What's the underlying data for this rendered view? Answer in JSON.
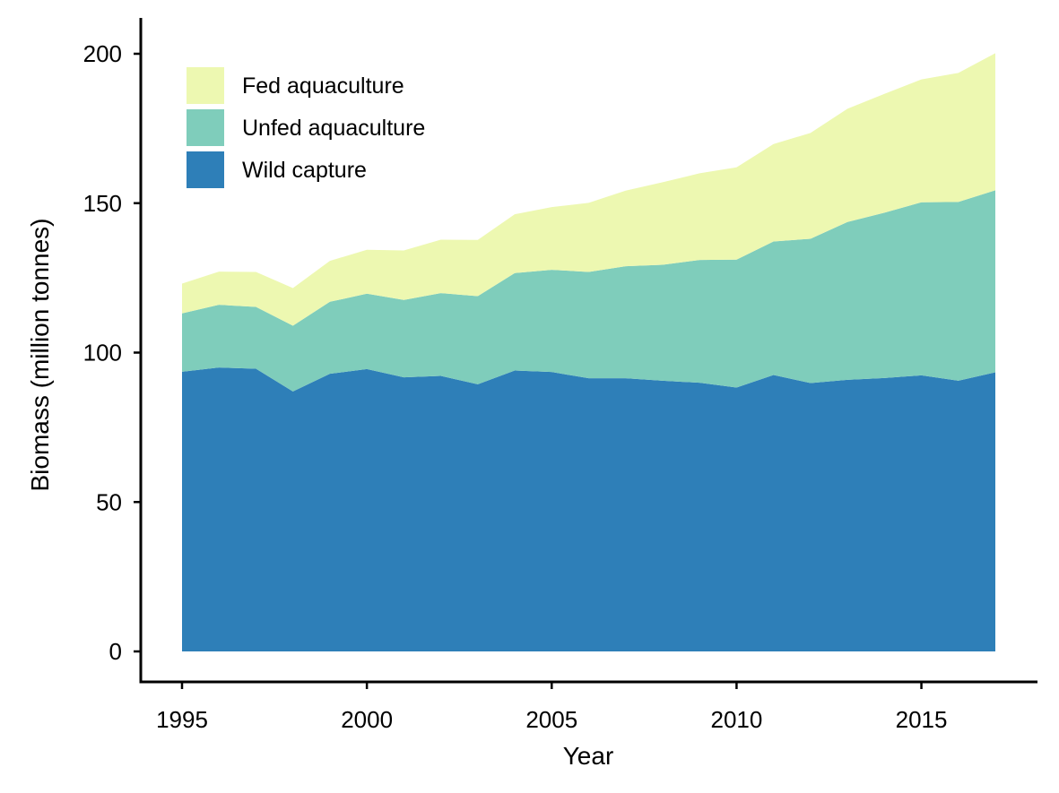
{
  "chart_data": {
    "type": "area",
    "stacked": true,
    "xlabel": "Year",
    "ylabel": "Biomass (million tonnes)",
    "xlim": [
      1995,
      2017
    ],
    "ylim": [
      0,
      200
    ],
    "xticks": [
      1995,
      2000,
      2005,
      2010,
      2015
    ],
    "yticks": [
      0,
      50,
      100,
      150,
      200
    ],
    "grid": false,
    "legend_position": "top-left",
    "x": [
      1995,
      1996,
      1997,
      1998,
      1999,
      2000,
      2001,
      2002,
      2003,
      2004,
      2005,
      2006,
      2007,
      2008,
      2009,
      2010,
      2011,
      2012,
      2013,
      2014,
      2015,
      2016,
      2017
    ],
    "series": [
      {
        "name": "Wild capture",
        "color": "#2e7fb8",
        "values": [
          93.6,
          95.0,
          94.6,
          87.0,
          92.9,
          94.5,
          91.7,
          92.2,
          89.4,
          94.0,
          93.5,
          91.4,
          91.4,
          90.6,
          89.9,
          88.3,
          92.5,
          89.8,
          90.9,
          91.5,
          92.4,
          90.6,
          93.4
        ]
      },
      {
        "name": "Unfed aquaculture",
        "color": "#7fcdbb",
        "values": [
          19.5,
          21.0,
          20.7,
          22.0,
          24.1,
          25.2,
          25.9,
          27.7,
          29.5,
          32.6,
          34.2,
          35.6,
          37.5,
          38.8,
          41.1,
          42.8,
          44.7,
          48.3,
          52.8,
          55.3,
          57.9,
          59.8,
          60.9
        ]
      },
      {
        "name": "Fed aquaculture",
        "color": "#edf8b1",
        "values": [
          10.0,
          11.1,
          11.7,
          12.6,
          13.7,
          14.7,
          16.6,
          17.9,
          18.8,
          19.7,
          21.0,
          23.1,
          25.3,
          27.6,
          29.0,
          30.9,
          32.6,
          35.4,
          37.9,
          39.8,
          41.1,
          43.2,
          45.9
        ]
      }
    ],
    "legend_order": [
      "Fed aquaculture",
      "Unfed aquaculture",
      "Wild capture"
    ]
  }
}
